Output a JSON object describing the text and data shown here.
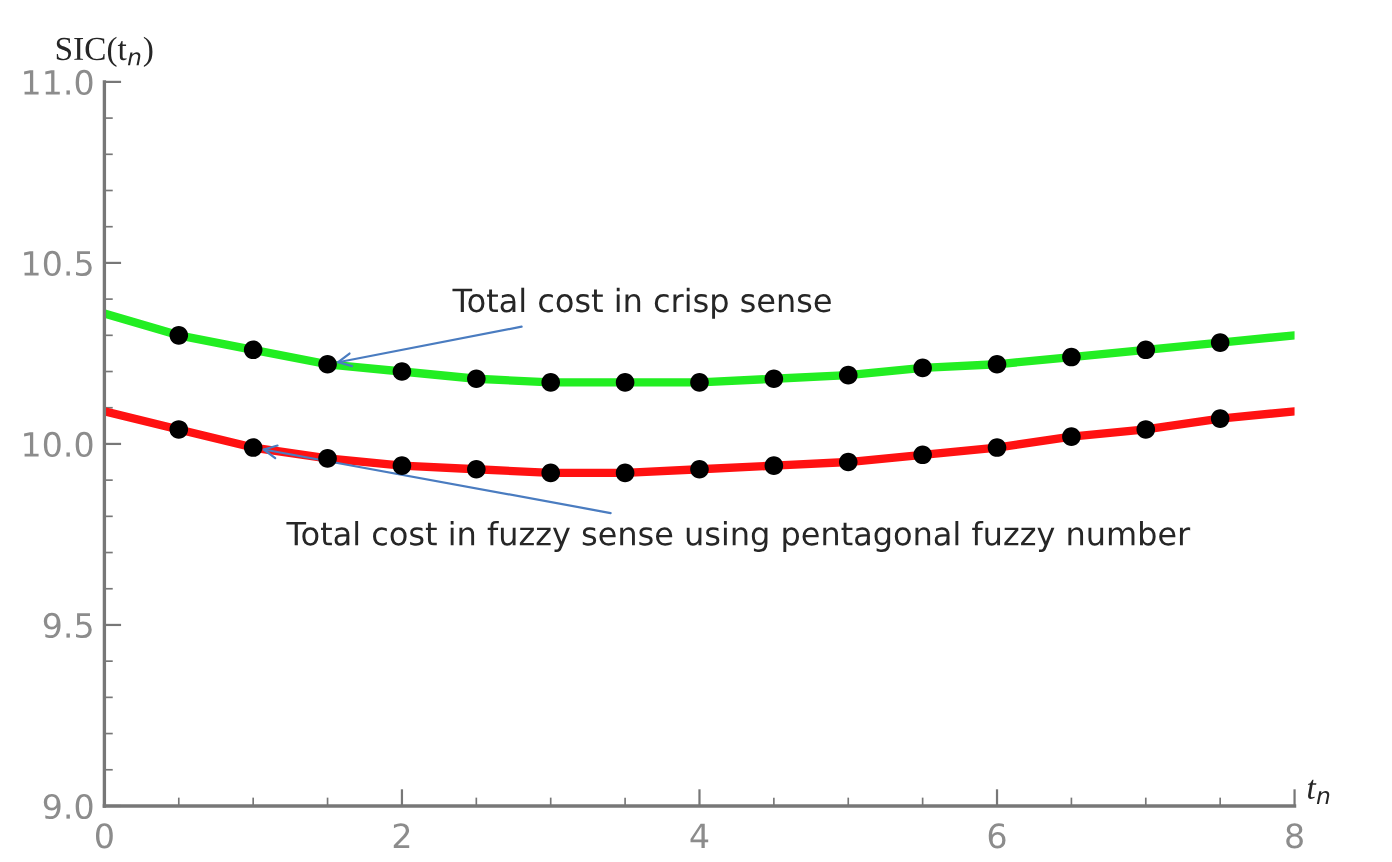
{
  "chart_data": {
    "type": "line",
    "ylabel": "SIC(t$_{n}$)",
    "xlabel": "t$_{n}$",
    "xlim": [
      0,
      8
    ],
    "xticks": [
      0,
      2,
      4,
      6,
      8
    ],
    "ylim": [
      9.0,
      11.0
    ],
    "yticks": [
      {
        "value": 9.0,
        "label": "9.0"
      },
      {
        "value": 9.5,
        "label": "9.5"
      },
      {
        "value": 10.0,
        "label": "10.0"
      },
      {
        "value": 10.5,
        "label": "10.5"
      },
      {
        "value": 11.0,
        "label": "11.0"
      }
    ],
    "grid": false,
    "series": [
      {
        "color": "#22ee22",
        "x": [
          0,
          0.5,
          1,
          1.5,
          2,
          2.5,
          3,
          3.5,
          4,
          4.5,
          5,
          5.5,
          6,
          6.5,
          7,
          7.5,
          8
        ],
        "values": [
          10.36,
          10.3,
          10.26,
          10.22,
          10.2,
          10.18,
          10.17,
          10.17,
          10.17,
          10.18,
          10.19,
          10.21,
          10.22,
          10.24,
          10.26,
          10.28,
          10.3
        ]
      },
      {
        "color": "#ff1111",
        "x": [
          0,
          0.5,
          1,
          1.5,
          2,
          2.5,
          3,
          3.5,
          4,
          4.5,
          5,
          5.5,
          6,
          6.5,
          7,
          7.5,
          8
        ],
        "values": [
          10.09,
          10.04,
          9.99,
          9.96,
          9.94,
          9.93,
          9.92,
          9.92,
          9.93,
          9.94,
          9.95,
          9.97,
          9.99,
          10.02,
          10.04,
          10.07,
          10.09
        ]
      },
      {
        "type": "scatter",
        "color": "#000000",
        "marker": "circle",
        "x": [
          0.5,
          1,
          1.5,
          2,
          2.5,
          3,
          3.5,
          4,
          4.5,
          5,
          5.5,
          6,
          6.5,
          7,
          7.5
        ],
        "values": [
          10.3,
          10.26,
          10.22,
          10.2,
          10.18,
          10.17,
          10.17,
          10.17,
          10.18,
          10.19,
          10.21,
          10.22,
          10.24,
          10.26,
          10.28
        ]
      },
      {
        "type": "scatter",
        "color": "#000000",
        "marker": "circle",
        "x": [
          0.5,
          1,
          1.5,
          2,
          2.5,
          3,
          3.5,
          4,
          4.5,
          5,
          5.5,
          6,
          6.5,
          7,
          7.5
        ],
        "values": [
          10.04,
          9.99,
          9.96,
          9.94,
          9.93,
          9.92,
          9.92,
          9.93,
          9.94,
          9.95,
          9.97,
          9.99,
          10.02,
          10.04,
          10.07
        ]
      }
    ],
    "annotations": [
      {
        "text": "Total cost in crisp sense",
        "x": 1.5,
        "y": 10.22
      },
      {
        "text": "Total cost in fuzzy sense using pentagonal fuzzy number",
        "x": 1.0,
        "y": 9.99
      }
    ]
  }
}
